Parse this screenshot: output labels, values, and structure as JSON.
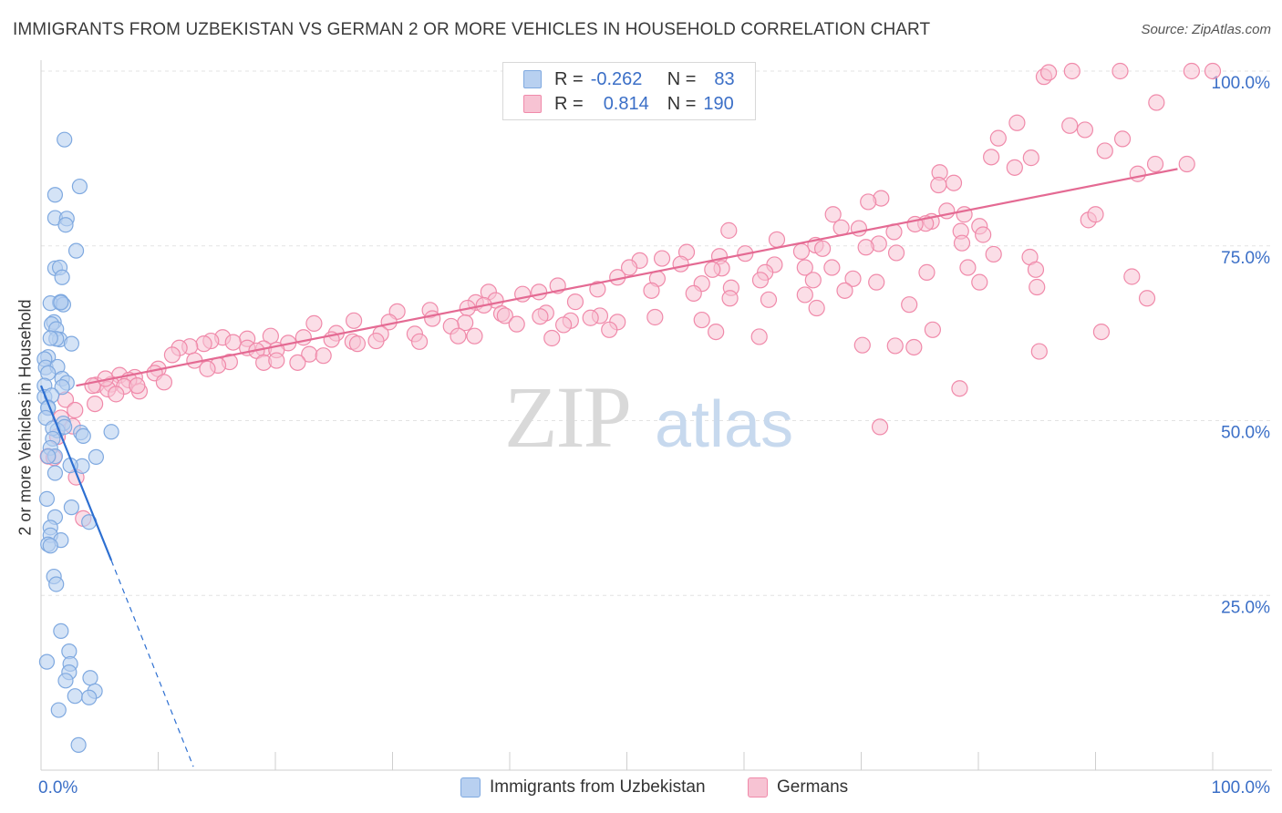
{
  "title": "IMMIGRANTS FROM UZBEKISTAN VS GERMAN 2 OR MORE VEHICLES IN HOUSEHOLD CORRELATION CHART",
  "source": "Source: ZipAtlas.com",
  "watermark": {
    "zip": "ZIP",
    "atlas": "atlas"
  },
  "colors": {
    "blue": "#7fa9e0",
    "blue_fill": "#b8d0f0",
    "blue_line": "#2d6fd1",
    "pink": "#f08aaa",
    "pink_fill": "#f7c3d3",
    "pink_line": "#e46a93",
    "tick_text": "#3b6fc7"
  },
  "legend": {
    "rows": [
      {
        "r_label": "R =",
        "r_value": "-0.262",
        "n_label": "N =",
        "n_value": "83"
      },
      {
        "r_label": "R =",
        "r_value": "0.814",
        "n_label": "N =",
        "n_value": "190"
      }
    ]
  },
  "bottom_legend": {
    "series1": "Immigrants from Uzbekistan",
    "series2": "Germans"
  },
  "chart_data": {
    "type": "scatter",
    "xlabel": "",
    "ylabel": "2 or more Vehicles in Household",
    "xlim": [
      0,
      100
    ],
    "ylim": [
      0,
      100
    ],
    "x_tick_labels": [
      "0.0%",
      "100.0%"
    ],
    "y_tick_labels": [
      "25.0%",
      "50.0%",
      "75.0%",
      "100.0%"
    ],
    "y_ticks": [
      25,
      50,
      75,
      100
    ],
    "x_ticks_minor": [
      0,
      10,
      20,
      30,
      40,
      50,
      60,
      70,
      80,
      90,
      100
    ],
    "grid": true,
    "series": [
      {
        "name": "Immigrants from Uzbekistan",
        "r": -0.262,
        "n": 83,
        "trend": {
          "x1": 0,
          "y1": 55.0,
          "x2": 6.0,
          "y2": 30.0,
          "dash_to_x": 13.0,
          "dash_to_y": 0.5
        },
        "points": [
          [
            2.0,
            90.2
          ],
          [
            3.3,
            83.5
          ],
          [
            1.2,
            82.3
          ],
          [
            1.2,
            79.0
          ],
          [
            2.2,
            78.9
          ],
          [
            2.1,
            78.0
          ],
          [
            3.0,
            74.3
          ],
          [
            1.2,
            71.8
          ],
          [
            1.6,
            71.9
          ],
          [
            1.8,
            70.5
          ],
          [
            1.6,
            66.9
          ],
          [
            1.7,
            67.0
          ],
          [
            0.8,
            66.8
          ],
          [
            1.9,
            66.6
          ],
          [
            1.7,
            66.9
          ],
          [
            1.1,
            64.1
          ],
          [
            0.9,
            63.8
          ],
          [
            1.3,
            63.1
          ],
          [
            1.6,
            61.6
          ],
          [
            1.3,
            61.7
          ],
          [
            0.8,
            61.8
          ],
          [
            2.6,
            61.0
          ],
          [
            0.6,
            59.1
          ],
          [
            0.3,
            58.8
          ],
          [
            0.4,
            57.6
          ],
          [
            1.4,
            57.7
          ],
          [
            0.6,
            56.8
          ],
          [
            1.8,
            56.0
          ],
          [
            2.2,
            55.4
          ],
          [
            1.8,
            54.8
          ],
          [
            0.3,
            55.0
          ],
          [
            0.3,
            53.4
          ],
          [
            0.9,
            53.6
          ],
          [
            0.6,
            51.9
          ],
          [
            0.6,
            51.8
          ],
          [
            0.4,
            50.4
          ],
          [
            1.9,
            49.6
          ],
          [
            1.4,
            48.6
          ],
          [
            1.0,
            48.9
          ],
          [
            2.0,
            49.1
          ],
          [
            3.4,
            48.3
          ],
          [
            3.6,
            47.8
          ],
          [
            6.0,
            48.4
          ],
          [
            1.0,
            47.4
          ],
          [
            0.8,
            46.1
          ],
          [
            1.2,
            44.9
          ],
          [
            0.6,
            44.9
          ],
          [
            4.7,
            44.8
          ],
          [
            3.5,
            43.5
          ],
          [
            2.5,
            43.6
          ],
          [
            1.2,
            42.5
          ],
          [
            0.5,
            38.8
          ],
          [
            2.6,
            37.6
          ],
          [
            1.2,
            36.2
          ],
          [
            4.1,
            35.5
          ],
          [
            0.8,
            34.7
          ],
          [
            0.8,
            33.6
          ],
          [
            1.7,
            32.9
          ],
          [
            0.6,
            32.3
          ],
          [
            0.8,
            32.1
          ],
          [
            1.1,
            27.7
          ],
          [
            1.3,
            26.6
          ],
          [
            1.7,
            19.9
          ],
          [
            2.4,
            17.0
          ],
          [
            0.5,
            15.5
          ],
          [
            2.5,
            15.2
          ],
          [
            2.4,
            14.0
          ],
          [
            4.2,
            13.2
          ],
          [
            2.1,
            12.8
          ],
          [
            4.6,
            11.3
          ],
          [
            2.9,
            10.6
          ],
          [
            4.1,
            10.4
          ],
          [
            1.5,
            8.6
          ],
          [
            3.2,
            3.6
          ]
        ]
      },
      {
        "name": "Germans",
        "r": 0.814,
        "n": 190,
        "trend": {
          "x1": 3.0,
          "y1": 55.0,
          "x2": 97.0,
          "y2": 86.0
        },
        "points": [
          [
            88.0,
            100.0
          ],
          [
            98.2,
            100.0
          ],
          [
            100.0,
            100.0
          ],
          [
            92.1,
            100.0
          ],
          [
            85.6,
            99.2
          ],
          [
            86.0,
            99.8
          ],
          [
            95.2,
            95.5
          ],
          [
            87.8,
            92.2
          ],
          [
            83.3,
            92.6
          ],
          [
            89.1,
            91.6
          ],
          [
            92.3,
            90.3
          ],
          [
            81.7,
            90.4
          ],
          [
            90.8,
            88.6
          ],
          [
            81.1,
            87.7
          ],
          [
            84.5,
            87.6
          ],
          [
            97.8,
            86.7
          ],
          [
            95.1,
            86.7
          ],
          [
            83.1,
            86.2
          ],
          [
            76.7,
            85.5
          ],
          [
            93.6,
            85.3
          ],
          [
            77.9,
            84.0
          ],
          [
            76.6,
            83.7
          ],
          [
            71.7,
            81.8
          ],
          [
            70.6,
            81.3
          ],
          [
            77.3,
            80.0
          ],
          [
            78.8,
            79.5
          ],
          [
            67.6,
            79.5
          ],
          [
            89.4,
            78.7
          ],
          [
            76.0,
            78.5
          ],
          [
            75.5,
            78.2
          ],
          [
            74.6,
            78.1
          ],
          [
            80.1,
            77.8
          ],
          [
            68.3,
            77.6
          ],
          [
            72.8,
            77.0
          ],
          [
            69.8,
            77.5
          ],
          [
            78.5,
            77.1
          ],
          [
            58.7,
            77.2
          ],
          [
            80.4,
            76.6
          ],
          [
            62.8,
            75.9
          ],
          [
            78.6,
            75.4
          ],
          [
            71.5,
            75.3
          ],
          [
            66.1,
            75.1
          ],
          [
            70.4,
            74.8
          ],
          [
            66.7,
            74.6
          ],
          [
            64.9,
            74.2
          ],
          [
            60.1,
            73.9
          ],
          [
            55.1,
            74.1
          ],
          [
            73.0,
            74.0
          ],
          [
            81.3,
            73.8
          ],
          [
            57.9,
            73.5
          ],
          [
            53.0,
            73.2
          ],
          [
            51.1,
            72.9
          ],
          [
            54.6,
            72.4
          ],
          [
            62.6,
            72.3
          ],
          [
            50.2,
            71.9
          ],
          [
            67.5,
            71.9
          ],
          [
            79.1,
            71.9
          ],
          [
            65.2,
            71.9
          ],
          [
            58.1,
            71.8
          ],
          [
            57.3,
            71.6
          ],
          [
            61.8,
            71.2
          ],
          [
            75.6,
            71.2
          ],
          [
            49.2,
            70.5
          ],
          [
            69.3,
            70.3
          ],
          [
            52.6,
            70.3
          ],
          [
            61.4,
            70.1
          ],
          [
            65.9,
            70.1
          ],
          [
            71.3,
            69.8
          ],
          [
            56.4,
            69.6
          ],
          [
            44.1,
            69.3
          ],
          [
            58.9,
            69.0
          ],
          [
            47.5,
            68.8
          ],
          [
            52.1,
            68.6
          ],
          [
            68.6,
            68.6
          ],
          [
            38.2,
            68.4
          ],
          [
            42.5,
            68.4
          ],
          [
            41.1,
            68.1
          ],
          [
            55.7,
            68.2
          ],
          [
            65.2,
            68.0
          ],
          [
            62.1,
            67.3
          ],
          [
            58.8,
            67.5
          ],
          [
            38.8,
            67.2
          ],
          [
            45.6,
            67.0
          ],
          [
            37.1,
            66.9
          ],
          [
            37.8,
            66.5
          ],
          [
            36.4,
            66.1
          ],
          [
            33.2,
            65.8
          ],
          [
            30.4,
            65.6
          ],
          [
            39.3,
            65.3
          ],
          [
            43.1,
            65.4
          ],
          [
            47.7,
            65.0
          ],
          [
            42.6,
            64.9
          ],
          [
            52.4,
            64.8
          ],
          [
            39.6,
            65.0
          ],
          [
            46.9,
            64.7
          ],
          [
            45.2,
            64.3
          ],
          [
            49.2,
            64.1
          ],
          [
            33.4,
            64.6
          ],
          [
            36.2,
            64.0
          ],
          [
            26.7,
            64.3
          ],
          [
            29.7,
            64.1
          ],
          [
            40.6,
            63.8
          ],
          [
            44.6,
            63.7
          ],
          [
            23.3,
            63.9
          ],
          [
            35.0,
            63.5
          ],
          [
            48.5,
            63.0
          ],
          [
            57.6,
            62.7
          ],
          [
            31.9,
            62.4
          ],
          [
            29.0,
            62.4
          ],
          [
            25.2,
            62.5
          ],
          [
            35.6,
            62.1
          ],
          [
            37.0,
            62.1
          ],
          [
            19.6,
            62.1
          ],
          [
            15.5,
            61.9
          ],
          [
            17.6,
            61.7
          ],
          [
            22.4,
            61.9
          ],
          [
            14.5,
            61.4
          ],
          [
            24.8,
            61.6
          ],
          [
            13.9,
            61.0
          ],
          [
            21.1,
            61.1
          ],
          [
            16.4,
            61.2
          ],
          [
            26.6,
            61.3
          ],
          [
            32.3,
            61.3
          ],
          [
            28.6,
            61.4
          ],
          [
            27.0,
            61.0
          ],
          [
            12.7,
            60.6
          ],
          [
            11.8,
            60.4
          ],
          [
            19.0,
            60.3
          ],
          [
            17.6,
            60.4
          ],
          [
            18.4,
            60.0
          ],
          [
            20.1,
            60.1
          ],
          [
            22.9,
            59.5
          ],
          [
            11.2,
            59.4
          ],
          [
            24.1,
            59.3
          ],
          [
            13.1,
            58.6
          ],
          [
            16.1,
            58.4
          ],
          [
            19.0,
            58.3
          ],
          [
            20.1,
            58.6
          ],
          [
            21.9,
            58.3
          ],
          [
            15.1,
            57.9
          ],
          [
            14.2,
            57.4
          ],
          [
            10.0,
            57.4
          ],
          [
            9.7,
            56.8
          ],
          [
            6.7,
            56.5
          ],
          [
            8.0,
            56.2
          ],
          [
            7.5,
            55.8
          ],
          [
            10.5,
            55.5
          ],
          [
            6.0,
            55.2
          ],
          [
            4.7,
            55.1
          ],
          [
            4.4,
            55.0
          ],
          [
            5.7,
            54.5
          ],
          [
            7.1,
            54.9
          ],
          [
            8.4,
            54.2
          ],
          [
            6.4,
            53.8
          ],
          [
            2.1,
            53.0
          ],
          [
            2.9,
            51.5
          ],
          [
            4.6,
            52.4
          ],
          [
            1.7,
            50.4
          ],
          [
            2.7,
            49.2
          ],
          [
            1.4,
            47.7
          ],
          [
            0.6,
            44.9
          ],
          [
            1.1,
            44.7
          ],
          [
            3.0,
            41.9
          ],
          [
            3.6,
            36.0
          ],
          [
            5.5,
            56.0
          ],
          [
            8.2,
            55.0
          ],
          [
            90.0,
            79.5
          ],
          [
            84.4,
            73.4
          ],
          [
            84.9,
            71.6
          ],
          [
            93.1,
            70.6
          ],
          [
            80.1,
            69.8
          ],
          [
            85.0,
            69.1
          ],
          [
            94.4,
            67.5
          ],
          [
            74.1,
            66.6
          ],
          [
            66.2,
            66.1
          ],
          [
            76.1,
            63.0
          ],
          [
            56.4,
            64.4
          ],
          [
            61.3,
            62.0
          ],
          [
            43.6,
            61.8
          ],
          [
            72.9,
            60.7
          ],
          [
            85.2,
            59.9
          ],
          [
            78.4,
            54.6
          ],
          [
            71.6,
            49.1
          ],
          [
            90.5,
            62.7
          ],
          [
            74.5,
            60.5
          ],
          [
            70.1,
            60.8
          ]
        ]
      }
    ]
  }
}
